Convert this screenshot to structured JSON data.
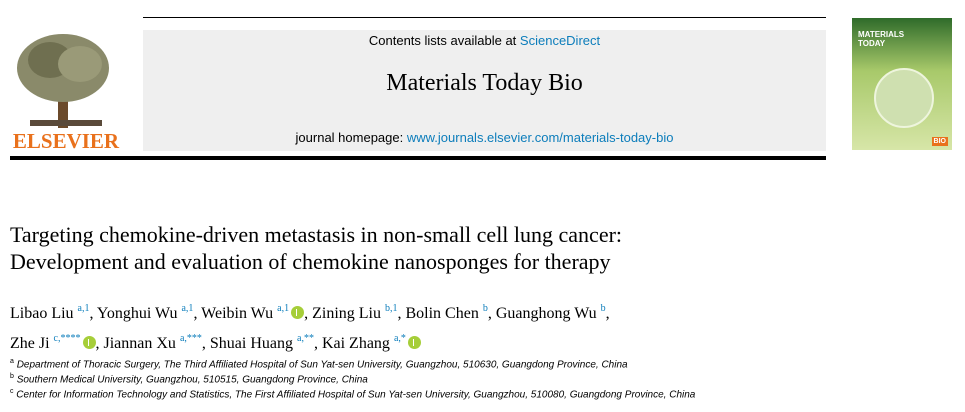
{
  "header": {
    "publisher": "ELSEVIER",
    "contents_prefix": "Contents lists available at",
    "contents_link": "ScienceDirect",
    "journal": "Materials Today Bio",
    "homepage_prefix": "journal homepage:",
    "homepage_link": "www.journals.elsevier.com/materials-today-bio",
    "cover_title": "MATERIALS TODAY",
    "cover_badge": "BIO"
  },
  "title": {
    "lines": [
      "Targeting chemokine-driven metastasis in non-small cell lung cancer:",
      "Development and evaluation of chemokine nanosponges for therapy"
    ]
  },
  "author_separator": ",",
  "authors": [
    {
      "name": "Libao Liu",
      "sup": "a,1"
    },
    {
      "name": "Yonghui Wu",
      "sup": "a,1"
    },
    {
      "name": "Weibin Wu",
      "sup": "a,1"
    },
    {
      "name": "Zining Liu",
      "sup": "b,1"
    },
    {
      "name": "Bolin Chen",
      "sup": "b"
    },
    {
      "name": "Guanghong Wu",
      "sup": "b"
    },
    {
      "name": "Zhe Ji",
      "sup": "c,****"
    },
    {
      "name": "Jiannan Xu",
      "sup": "a,***"
    },
    {
      "name": "Shuai Huang",
      "sup": "a,**"
    },
    {
      "name": "Kai Zhang",
      "sup": "a,*"
    }
  ],
  "affiliations": [
    {
      "label": "a",
      "text": "Department of Thoracic Surgery, The Third Affiliated Hospital of Sun Yat-sen University, Guangzhou, 510630, Guangdong Province, China"
    },
    {
      "label": "b",
      "text": "Southern Medical University, Guangzhou, 510515, Guangdong Province, China"
    },
    {
      "label": "c",
      "text": "Center for Information Technology and Statistics, The First Affiliated Hospital of Sun Yat-sen University, Guangzhou, 510080, Guangdong Province, China"
    }
  ]
}
